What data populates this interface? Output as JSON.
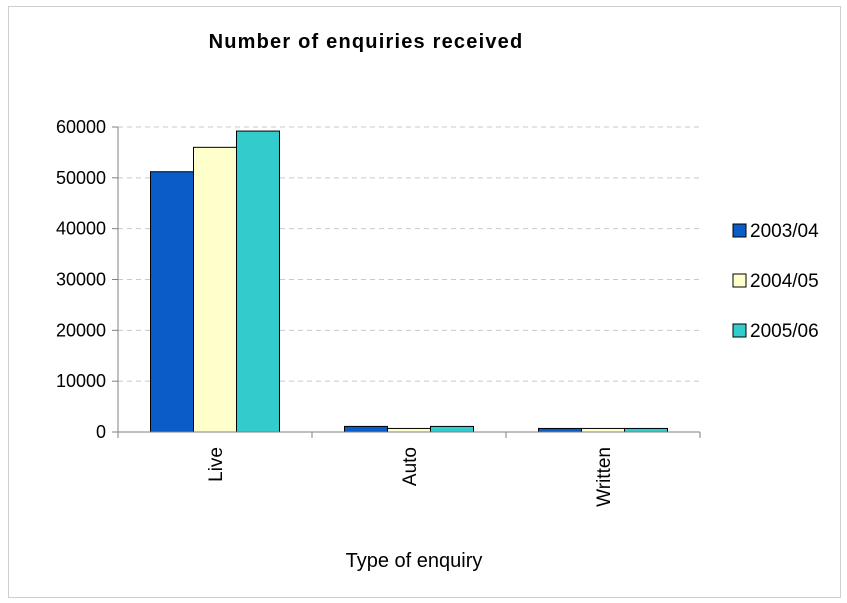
{
  "chart_data": {
    "type": "bar",
    "title": "Number of enquiries received",
    "xlabel": "Type of enquiry",
    "ylabel": "",
    "categories": [
      "Live",
      "Auto",
      "Written"
    ],
    "series": [
      {
        "name": "2003/04",
        "color": "#0a5cc8",
        "values": [
          51200,
          1100,
          700
        ]
      },
      {
        "name": "2004/05",
        "color": "#ffffcc",
        "values": [
          56000,
          700,
          700
        ]
      },
      {
        "name": "2005/06",
        "color": "#33cccc",
        "values": [
          59200,
          1100,
          700
        ]
      }
    ],
    "ylim": [
      0,
      60000
    ],
    "yticks": [
      "0",
      "10000",
      "20000",
      "30000",
      "40000",
      "50000",
      "60000"
    ],
    "grid": true,
    "legend": "right"
  }
}
